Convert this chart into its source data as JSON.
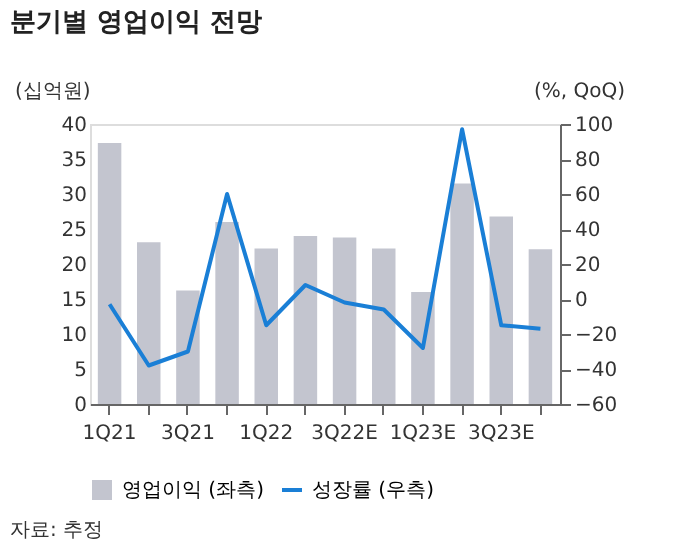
{
  "chart_data": {
    "type": "bar",
    "title": "분기별 영업이익 전망",
    "categories": [
      "1Q21",
      null,
      "3Q21",
      null,
      "1Q22",
      null,
      "3Q22E",
      null,
      "1Q23E",
      null,
      "3Q23E",
      null
    ],
    "series": [
      {
        "name": "영업이익 (좌측)",
        "color": "#c3c5cf",
        "values": [
          37.3,
          23.1,
          16.2,
          26.0,
          22.2,
          24.0,
          23.8,
          22.2,
          16.0,
          31.5,
          26.8,
          22.1
        ]
      },
      {
        "name": "성장률 (우측)",
        "type": "line",
        "axis": "y2",
        "color": "#1a7fd6",
        "values": [
          -3,
          -38,
          -30,
          60,
          -15,
          8,
          -2,
          -6,
          -28,
          97,
          -15,
          -17
        ]
      }
    ],
    "ylabel": "(십억원)",
    "y2label": "(%, QoQ)",
    "ylim": [
      0,
      40
    ],
    "yticks": [
      0,
      5,
      10,
      15,
      20,
      25,
      30,
      35,
      40
    ],
    "y2lim": [
      -60,
      100
    ],
    "y2ticks": [
      -60,
      -40,
      -20,
      0,
      20,
      40,
      60,
      80,
      100
    ],
    "grid": false,
    "legend": "bottom",
    "marker": "none",
    "line_style": "solid",
    "annotations": [
      "자료: 추정"
    ]
  }
}
